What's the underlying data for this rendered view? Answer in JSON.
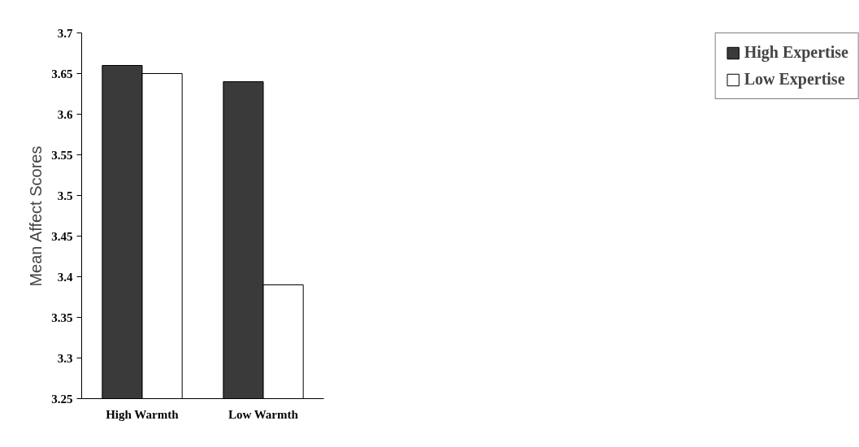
{
  "chart_data": {
    "type": "bar",
    "ylabel": "Mean Affect Scores",
    "categories": [
      "High Warmth",
      "Low Warmth"
    ],
    "series": [
      {
        "name": "High Expertise",
        "color": "#3a3a3a",
        "values": [
          3.66,
          3.64
        ]
      },
      {
        "name": "Low Expertise",
        "color": "#ffffff",
        "values": [
          3.65,
          3.39
        ]
      }
    ],
    "ylim": [
      3.25,
      3.7
    ],
    "yticks": [
      3.25,
      3.3,
      3.35,
      3.4,
      3.45,
      3.5,
      3.55,
      3.6,
      3.65,
      3.7
    ],
    "grid": false,
    "legend": "right"
  }
}
